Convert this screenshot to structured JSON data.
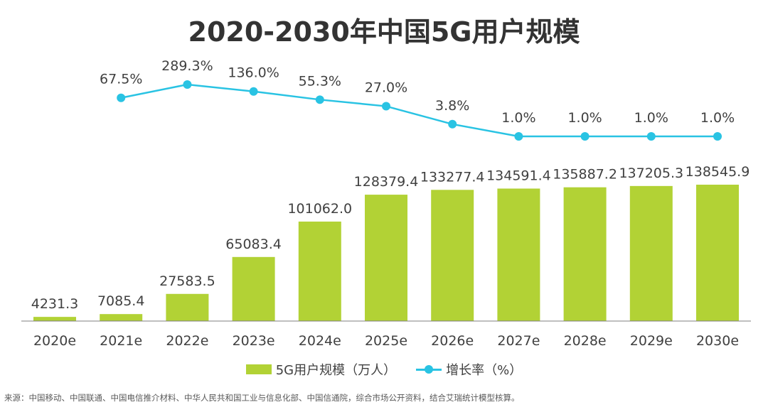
{
  "title": "2020-2030年中国5G用户规模",
  "source": "来源：中国移动、中国联通、中国电信推介材料、中华人民共和国工业与信息化部、中国信通院，综合市场公开资料，结合艾瑞统计模型核算。",
  "colors": {
    "bar": "#b2d235",
    "line": "#29c3e3",
    "text": "#404040",
    "title": "#333333"
  },
  "chart_data": {
    "type": "bar",
    "title": "2020-2030年中国5G用户规模",
    "categories": [
      "2020e",
      "2021e",
      "2022e",
      "2023e",
      "2024e",
      "2025e",
      "2026e",
      "2027e",
      "2028e",
      "2029e",
      "2030e"
    ],
    "series": [
      {
        "name": "5G用户规模（万人）",
        "type": "bar",
        "values": [
          4231.3,
          7085.4,
          27583.5,
          65083.4,
          101062.0,
          128379.4,
          133277.4,
          134591.4,
          135887.2,
          137205.3,
          138545.9
        ],
        "labels": [
          "4231.3",
          "7085.4",
          "27583.5",
          "65083.4",
          "101062.0",
          "128379.4",
          "133277.4",
          "134591.4",
          "135887.2",
          "137205.3",
          "138545.9"
        ]
      },
      {
        "name": "增长率（%）",
        "type": "line",
        "values": [
          null,
          67.5,
          289.3,
          136.0,
          55.3,
          27.0,
          3.8,
          1.0,
          1.0,
          1.0,
          1.0
        ],
        "labels": [
          "",
          "67.5%",
          "289.3%",
          "136.0%",
          "55.3%",
          "27.0%",
          "3.8%",
          "1.0%",
          "1.0%",
          "1.0%",
          "1.0%"
        ]
      }
    ],
    "legend": {
      "position": "bottom"
    },
    "grid": false
  }
}
